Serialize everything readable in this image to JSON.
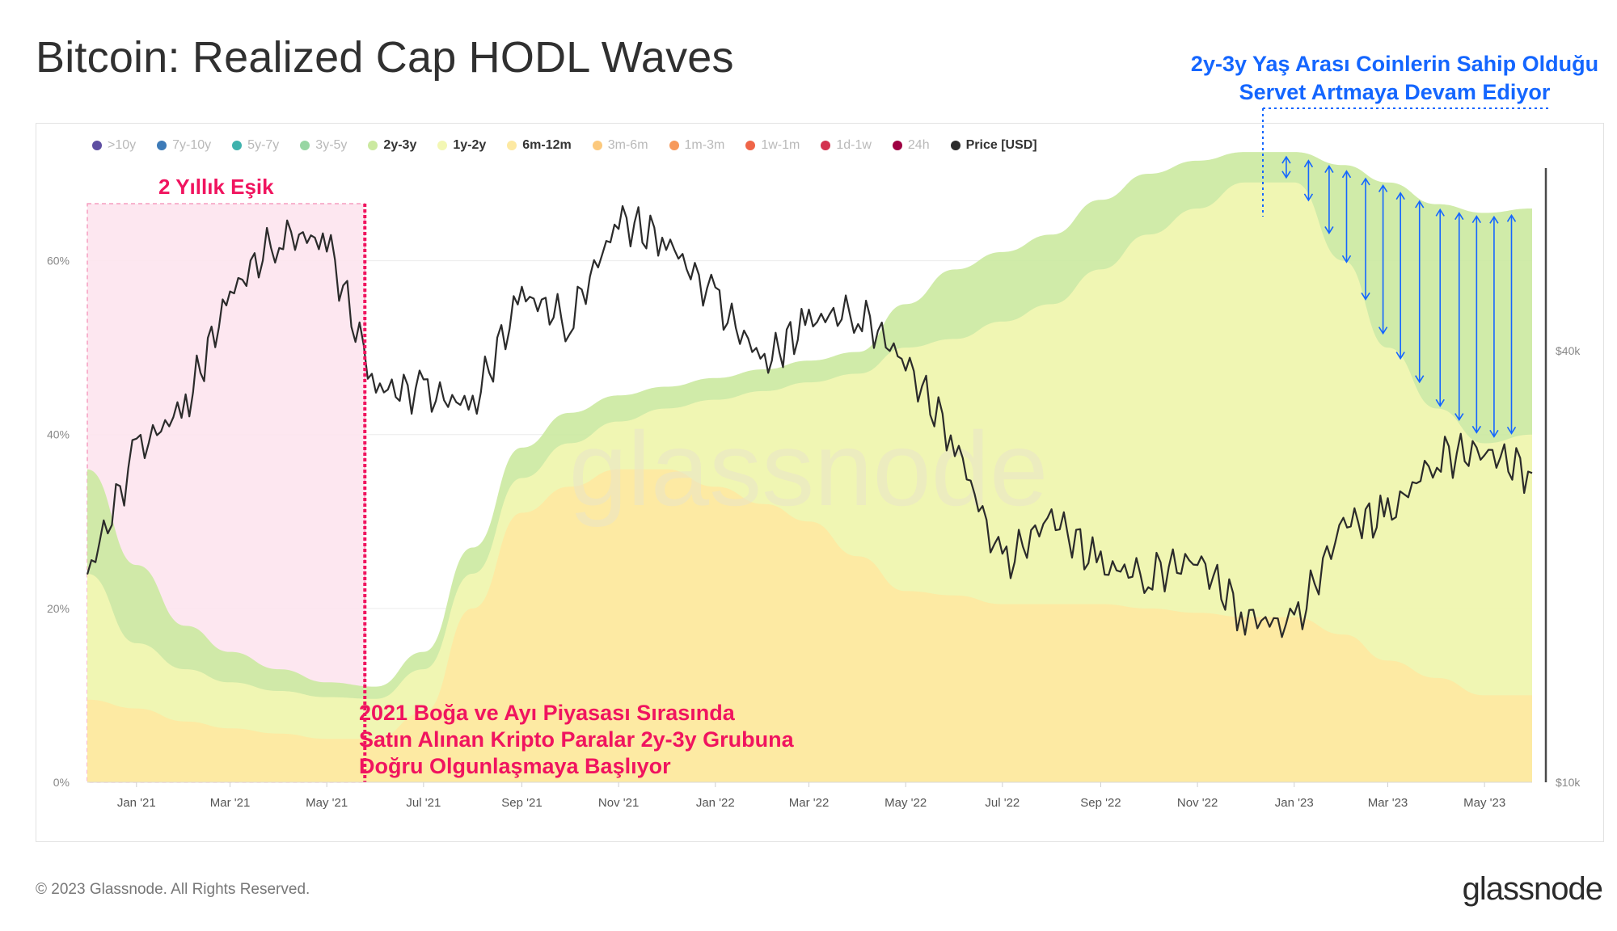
{
  "title": "Bitcoin: Realized Cap HODL Waves",
  "footer": {
    "copyright": "© 2023 Glassnode. All Rights Reserved.",
    "brand": "glassnode"
  },
  "annotations": {
    "wealth_line1": "2y-3y Yaş Arası Coinlerin Sahip Olduğu",
    "wealth_line2": "Servet Artmaya Devam Ediyor",
    "threshold": "2 Yıllık Eşik",
    "cohort_line1": "2021 Boğa ve Ayı Piyasası Sırasında",
    "cohort_line2": "Satın Alınan Kripto Paralar 2y-3y Grubuna",
    "cohort_line3": "Doğru Olgunlaşmaya Başlıyor"
  },
  "legend": [
    {
      "label": ">10y",
      "color": "#5e4fa2",
      "active": false
    },
    {
      "label": "7y-10y",
      "color": "#3d7bb8",
      "active": false
    },
    {
      "label": "5y-7y",
      "color": "#3fb2ad",
      "active": false
    },
    {
      "label": "3y-5y",
      "color": "#98d6a3",
      "active": false
    },
    {
      "label": "2y-3y",
      "color": "#cbe9a0",
      "active": true
    },
    {
      "label": "1y-2y",
      "color": "#f3f7b4",
      "active": true
    },
    {
      "label": "6m-12m",
      "color": "#fde9a2",
      "active": true
    },
    {
      "label": "3m-6m",
      "color": "#fcc97d",
      "active": false
    },
    {
      "label": "1m-3m",
      "color": "#f79a5c",
      "active": false
    },
    {
      "label": "1w-1m",
      "color": "#ef6548",
      "active": false
    },
    {
      "label": "1d-1w",
      "color": "#d3324f",
      "active": false
    },
    {
      "label": "24h",
      "color": "#9e0142",
      "active": false
    },
    {
      "label": "Price [USD]",
      "color": "#2b2b2b",
      "active": true
    }
  ],
  "chart_data": {
    "type": "area",
    "title": "Bitcoin: Realized Cap HODL Waves",
    "x": [
      "2020-12-01",
      "2021-01-01",
      "2021-02-01",
      "2021-03-01",
      "2021-04-01",
      "2021-05-01",
      "2021-06-01",
      "2021-07-01",
      "2021-08-01",
      "2021-09-01",
      "2021-10-01",
      "2021-11-01",
      "2021-12-01",
      "2022-01-01",
      "2022-02-01",
      "2022-03-01",
      "2022-04-01",
      "2022-05-01",
      "2022-06-01",
      "2022-07-01",
      "2022-08-01",
      "2022-09-01",
      "2022-10-01",
      "2022-11-01",
      "2022-12-01",
      "2023-01-01",
      "2023-02-01",
      "2023-03-01",
      "2023-04-01",
      "2023-05-01",
      "2023-05-31"
    ],
    "x_ticks": [
      "Jan '21",
      "Mar '21",
      "May '21",
      "Jul '21",
      "Sep '21",
      "Nov '21",
      "Jan '22",
      "Mar '22",
      "May '22",
      "Jul '22",
      "Sep '22",
      "Nov '22",
      "Jan '23",
      "Mar '23",
      "May '23"
    ],
    "y_left": {
      "ticks": [
        "0%",
        "20%",
        "40%",
        "60%"
      ],
      "ylim": [
        0,
        70
      ]
    },
    "y_right": {
      "ticks": [
        "$10k",
        "$40k"
      ],
      "scale": "log"
    },
    "series": [
      {
        "name": "6m-12m",
        "color": "#fde9a2",
        "values": [
          9.5,
          8.5,
          7.0,
          6.2,
          5.6,
          5.0,
          5.0,
          8.0,
          20.0,
          31.0,
          34.0,
          36.0,
          36.0,
          34.0,
          32.0,
          30.0,
          26.0,
          22.0,
          21.5,
          20.5,
          20.5,
          20.5,
          20.0,
          19.5,
          19.0,
          19.0,
          17.0,
          14.0,
          12.0,
          10.0,
          10.0
        ]
      },
      {
        "name": "1y-2y",
        "color": "#f3f7b4",
        "values": [
          24.0,
          16.0,
          13.0,
          11.5,
          10.5,
          9.8,
          9.6,
          13.0,
          24.0,
          35.0,
          39.0,
          41.5,
          43.0,
          44.0,
          45.0,
          46.0,
          47.0,
          50.0,
          51.0,
          53.0,
          55.0,
          59.0,
          63.0,
          66.0,
          69.0,
          69.0,
          60.0,
          50.0,
          43.0,
          39.0,
          40.0
        ]
      },
      {
        "name": "2y-3y",
        "color": "#cbe9a0",
        "values": [
          36.0,
          25.0,
          18.0,
          15.0,
          13.0,
          11.5,
          11.0,
          15.0,
          27.0,
          38.5,
          42.5,
          44.5,
          45.5,
          46.5,
          47.5,
          48.5,
          49.5,
          55.0,
          59.0,
          61.0,
          63.0,
          67.0,
          70.0,
          71.5,
          72.5,
          72.5,
          71.0,
          69.0,
          66.5,
          65.5,
          66.0
        ]
      },
      {
        "name": "Price [USD]",
        "color": "#2b2b2b",
        "axis": "right",
        "values": [
          19500,
          29000,
          33500,
          48000,
          58000,
          57000,
          35500,
          35000,
          33500,
          48000,
          44000,
          61000,
          57000,
          47000,
          38500,
          44000,
          45500,
          38500,
          29800,
          20000,
          23500,
          20000,
          19500,
          20500,
          17000,
          16500,
          23000,
          23500,
          28500,
          29000,
          27000
        ]
      }
    ],
    "legend_position": "top-left",
    "grid": true
  }
}
